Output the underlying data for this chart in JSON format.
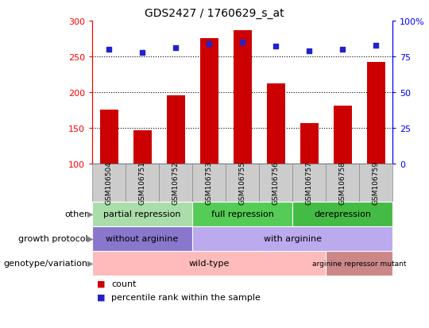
{
  "title": "GDS2427 / 1760629_s_at",
  "samples": [
    "GSM106504",
    "GSM106751",
    "GSM106752",
    "GSM106753",
    "GSM106755",
    "GSM106756",
    "GSM106757",
    "GSM106758",
    "GSM106759"
  ],
  "counts": [
    175,
    147,
    196,
    275,
    287,
    212,
    157,
    181,
    242
  ],
  "percentile_ranks": [
    80,
    78,
    81,
    84,
    85,
    82,
    79,
    80,
    83
  ],
  "ylim_left": [
    100,
    300
  ],
  "ylim_right": [
    0,
    100
  ],
  "bar_color": "#cc0000",
  "dot_color": "#2222cc",
  "annotation_rows": [
    {
      "label": "other",
      "segments": [
        {
          "text": "partial repression",
          "start": 0,
          "end": 3,
          "color": "#aaddaa"
        },
        {
          "text": "full repression",
          "start": 3,
          "end": 6,
          "color": "#55cc55"
        },
        {
          "text": "derepression",
          "start": 6,
          "end": 9,
          "color": "#44bb44"
        }
      ]
    },
    {
      "label": "growth protocol",
      "segments": [
        {
          "text": "without arginine",
          "start": 0,
          "end": 3,
          "color": "#8877cc"
        },
        {
          "text": "with arginine",
          "start": 3,
          "end": 9,
          "color": "#bbaaee"
        }
      ]
    },
    {
      "label": "genotype/variation",
      "segments": [
        {
          "text": "wild-type",
          "start": 0,
          "end": 7,
          "color": "#ffbbbb"
        },
        {
          "text": "arginine repressor mutant",
          "start": 7,
          "end": 9,
          "color": "#cc8888"
        }
      ]
    }
  ],
  "legend_items": [
    {
      "color": "#cc0000",
      "label": "count"
    },
    {
      "color": "#2222cc",
      "label": "percentile rank within the sample"
    }
  ],
  "sample_box_color": "#cccccc",
  "sample_box_edge": "#888888"
}
